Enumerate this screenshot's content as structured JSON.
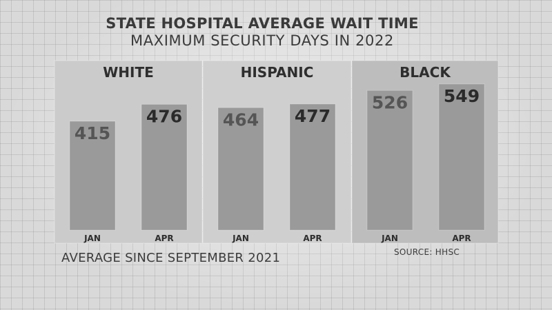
{
  "chart_data": {
    "type": "bar",
    "title": "STATE HOSPITAL AVERAGE WAIT TIME",
    "subtitle": "MAXIMUM SECURITY DAYS IN 2022",
    "categories": [
      "JAN",
      "APR"
    ],
    "groups": [
      {
        "name": "WHITE",
        "values": [
          415,
          476
        ]
      },
      {
        "name": "HISPANIC",
        "values": [
          464,
          477
        ]
      },
      {
        "name": "BLACK",
        "values": [
          526,
          549
        ]
      }
    ],
    "value_labels_on_bars": true,
    "grid": false
  },
  "footnote": "AVERAGE SINCE SEPTEMBER 2021",
  "source": "SOURCE: HHSC",
  "colors": {
    "background": "#d9d9d9",
    "panel_white": "#cbcbcb",
    "panel_hispanic": "#cfcfcf",
    "panel_black": "#bdbdbd",
    "bar": "#9a9a9a",
    "text_dark": "#333333"
  }
}
